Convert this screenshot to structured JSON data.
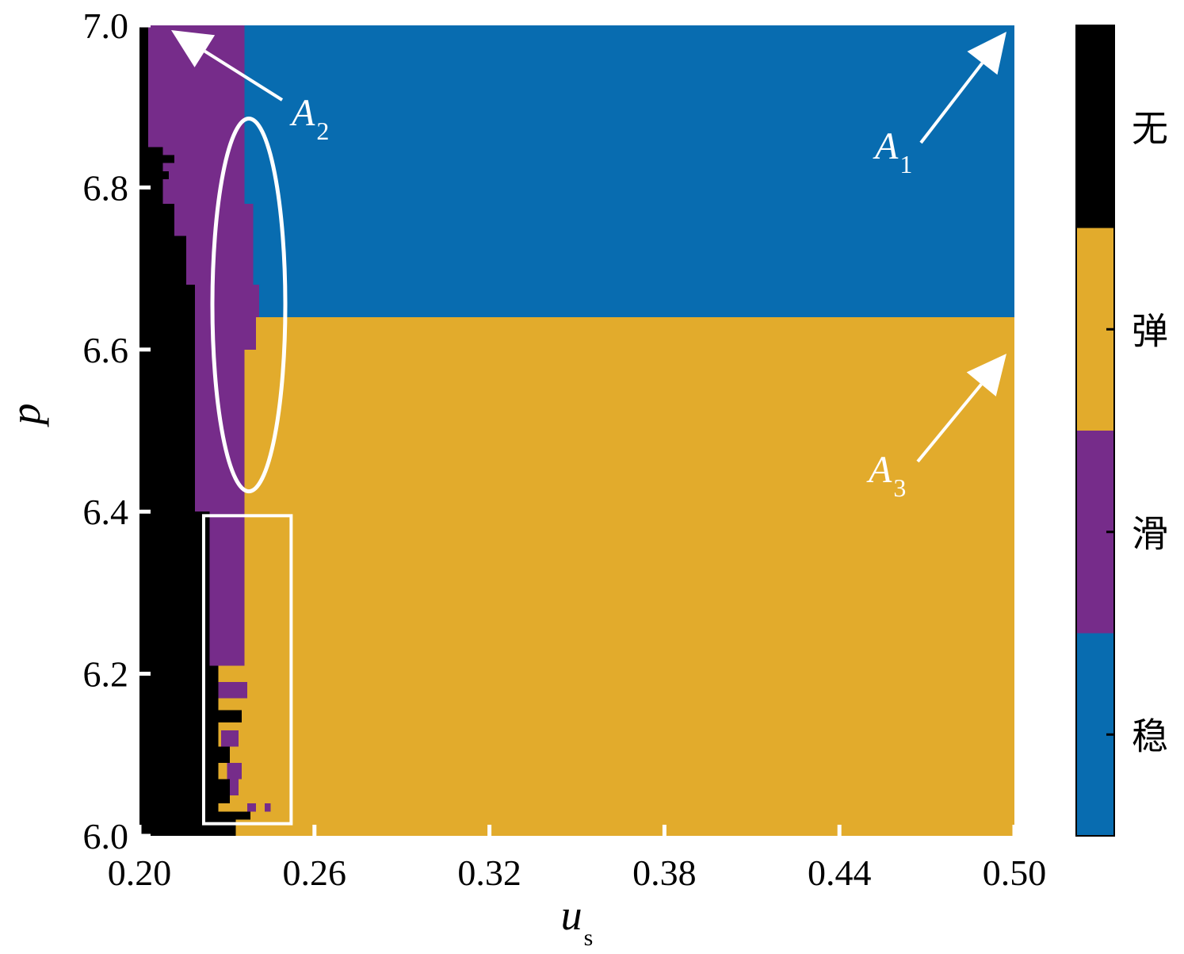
{
  "chart_data": {
    "type": "heatmap",
    "x": {
      "label": "u",
      "label_sub": "s",
      "lim": [
        0.2,
        0.5
      ],
      "ticks": [
        0.2,
        0.26,
        0.32,
        0.38,
        0.44,
        0.5
      ],
      "tick_labels": [
        "0.20",
        "0.26",
        "0.32",
        "0.38",
        "0.44",
        "0.50"
      ]
    },
    "y": {
      "label": "p",
      "lim": [
        6.0,
        7.0
      ],
      "ticks": [
        6.0,
        6.2,
        6.4,
        6.6,
        6.8,
        7.0
      ],
      "tick_labels": [
        "6.0",
        "6.2",
        "6.4",
        "6.6",
        "6.8",
        "7.0"
      ]
    },
    "categories": [
      {
        "key": "none",
        "label": "无",
        "color": "#000000"
      },
      {
        "key": "elastic",
        "label": "弹",
        "color": "#e2ab2c"
      },
      {
        "key": "slide",
        "label": "滑",
        "color": "#762c8a"
      },
      {
        "key": "stable",
        "label": "稳",
        "color": "#086cb0"
      }
    ],
    "colorbar_order_top_to_bottom": [
      "none",
      "elastic",
      "slide",
      "stable"
    ],
    "background": "elastic",
    "regions": [
      {
        "category": "stable",
        "x": [
          0.236,
          0.5
        ],
        "y": [
          6.64,
          7.0
        ]
      },
      {
        "category": "none",
        "x": [
          0.2,
          0.203
        ],
        "y": [
          6.0,
          7.0
        ]
      },
      {
        "category": "none",
        "x": [
          0.203,
          0.208
        ],
        "y": [
          6.0,
          6.85
        ]
      },
      {
        "category": "none",
        "x": [
          0.208,
          0.212
        ],
        "y": [
          6.0,
          6.78
        ]
      },
      {
        "category": "none",
        "x": [
          0.212,
          0.216
        ],
        "y": [
          6.0,
          6.74
        ]
      },
      {
        "category": "none",
        "x": [
          0.216,
          0.219
        ],
        "y": [
          6.0,
          6.68
        ]
      },
      {
        "category": "none",
        "x": [
          0.219,
          0.224
        ],
        "y": [
          6.0,
          6.4
        ]
      },
      {
        "category": "none",
        "x": [
          0.224,
          0.227
        ],
        "y": [
          6.0,
          6.21
        ]
      },
      {
        "category": "none",
        "x": [
          0.227,
          0.233
        ],
        "y": [
          6.0,
          6.02
        ]
      },
      {
        "category": "slide",
        "x": [
          0.203,
          0.236
        ],
        "y": [
          6.85,
          7.0
        ]
      },
      {
        "category": "slide",
        "x": [
          0.208,
          0.236
        ],
        "y": [
          6.78,
          6.85
        ]
      },
      {
        "category": "slide",
        "x": [
          0.212,
          0.239
        ],
        "y": [
          6.74,
          6.78
        ]
      },
      {
        "category": "slide",
        "x": [
          0.216,
          0.239
        ],
        "y": [
          6.68,
          6.74
        ]
      },
      {
        "category": "slide",
        "x": [
          0.219,
          0.241
        ],
        "y": [
          6.64,
          6.68
        ]
      },
      {
        "category": "slide",
        "x": [
          0.219,
          0.24
        ],
        "y": [
          6.6,
          6.64
        ]
      },
      {
        "category": "slide",
        "x": [
          0.219,
          0.236
        ],
        "y": [
          6.4,
          6.6
        ]
      },
      {
        "category": "slide",
        "x": [
          0.224,
          0.236
        ],
        "y": [
          6.21,
          6.4
        ]
      },
      {
        "category": "slide",
        "x": [
          0.227,
          0.237
        ],
        "y": [
          6.17,
          6.19
        ]
      },
      {
        "category": "slide",
        "x": [
          0.228,
          0.234
        ],
        "y": [
          6.11,
          6.13
        ]
      },
      {
        "category": "slide",
        "x": [
          0.23,
          0.235
        ],
        "y": [
          6.07,
          6.09
        ]
      },
      {
        "category": "slide",
        "x": [
          0.231,
          0.234
        ],
        "y": [
          6.05,
          6.07
        ]
      },
      {
        "category": "slide",
        "x": [
          0.237,
          0.24
        ],
        "y": [
          6.03,
          6.04
        ]
      },
      {
        "category": "slide",
        "x": [
          0.243,
          0.245
        ],
        "y": [
          6.03,
          6.04
        ]
      },
      {
        "category": "none",
        "x": [
          0.227,
          0.235
        ],
        "y": [
          6.14,
          6.155
        ]
      },
      {
        "category": "none",
        "x": [
          0.227,
          0.231
        ],
        "y": [
          6.09,
          6.11
        ]
      },
      {
        "category": "none",
        "x": [
          0.227,
          0.231
        ],
        "y": [
          6.04,
          6.07
        ]
      },
      {
        "category": "none",
        "x": [
          0.227,
          0.238
        ],
        "y": [
          6.02,
          6.03
        ]
      },
      {
        "category": "none",
        "x": [
          0.206,
          0.212
        ],
        "y": [
          6.83,
          6.84
        ]
      },
      {
        "category": "none",
        "x": [
          0.207,
          0.21
        ],
        "y": [
          6.81,
          6.82
        ]
      }
    ],
    "annotations": [
      {
        "label": "A",
        "sub": "1"
      },
      {
        "label": "A",
        "sub": "2"
      },
      {
        "label": "A",
        "sub": "3"
      }
    ],
    "highlights": [
      {
        "shape": "ellipse",
        "cx": 0.2375,
        "cy": 6.655,
        "rx": 0.0125,
        "ry": 0.23
      },
      {
        "shape": "rectangle",
        "x": [
          0.222,
          0.252
        ],
        "y": [
          6.015,
          6.395
        ]
      }
    ]
  }
}
